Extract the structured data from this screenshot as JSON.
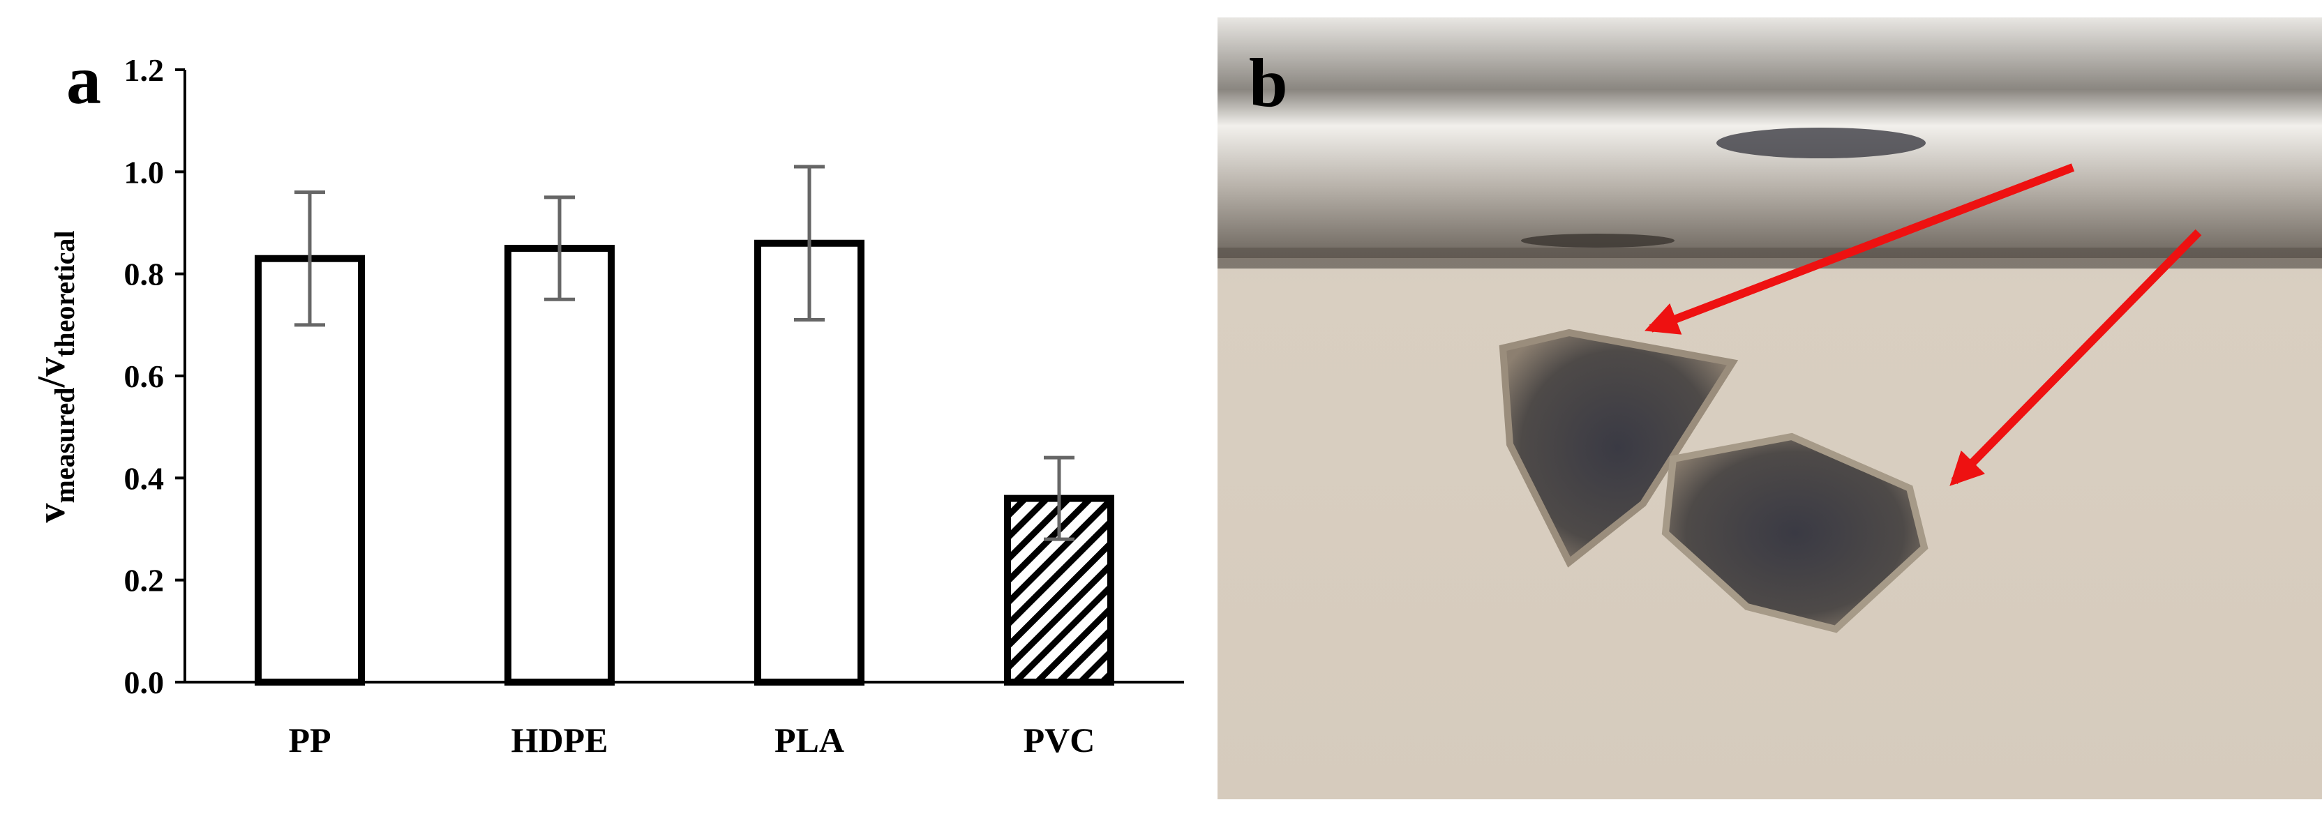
{
  "chart_data": {
    "type": "bar",
    "panel_labels": [
      "a",
      "b"
    ],
    "y_label_parts": [
      "v",
      "measured",
      "/v",
      "theoretical"
    ],
    "categories": [
      "PP",
      "HDPE",
      "PLA",
      "PVC"
    ],
    "values": [
      0.83,
      0.85,
      0.86,
      0.36
    ],
    "errors": [
      0.13,
      0.1,
      0.15,
      0.08
    ],
    "hatch": [
      false,
      false,
      false,
      true
    ],
    "color": "#ffffff",
    "edge_color": "#000000",
    "error_color": "#666666",
    "ylim": [
      0,
      1.2
    ],
    "yticks": [
      {
        "value": 0,
        "label": "0.0"
      },
      {
        "value": 0.2,
        "label": "0.2"
      },
      {
        "value": 0.4,
        "label": "0.4"
      },
      {
        "value": 0.6,
        "label": "0.6"
      },
      {
        "value": 0.8,
        "label": "0.8"
      },
      {
        "value": 1.0,
        "label": "1.0"
      },
      {
        "value": 1.2,
        "label": "1.2"
      }
    ],
    "grid": false
  }
}
